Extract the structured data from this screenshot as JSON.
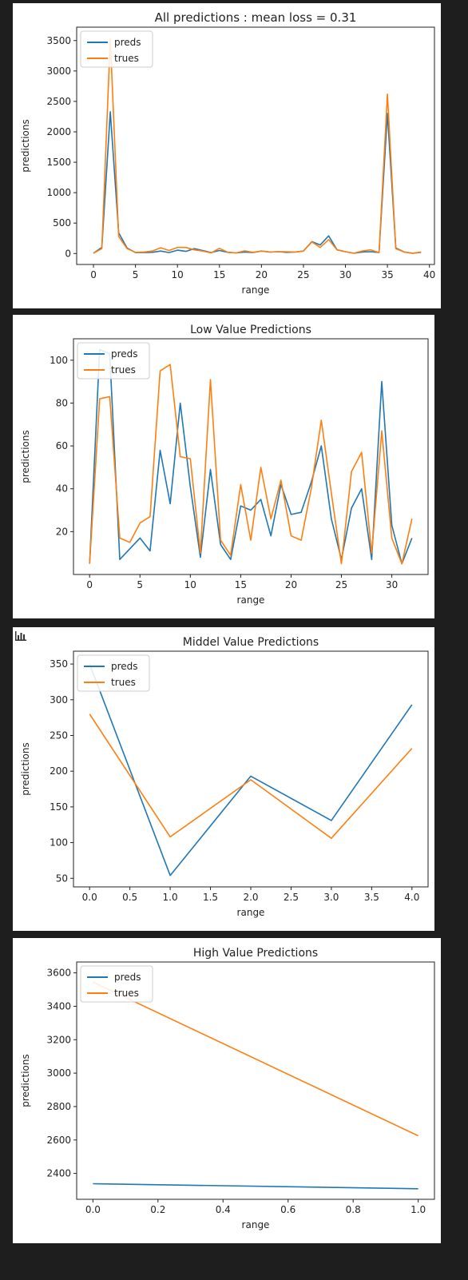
{
  "icons": {
    "chart_toggle": "bar-chart-icon"
  },
  "colors": {
    "preds": "#1f77b4",
    "trues": "#ff7f0e"
  },
  "chart_data": [
    {
      "type": "line",
      "title": "All predictions : mean loss = 0.31",
      "xlabel": "range",
      "ylabel": "predictions",
      "xlim": [
        -2,
        40.6
      ],
      "ylim": [
        -180,
        3720
      ],
      "xticks": [
        0,
        5,
        10,
        15,
        20,
        25,
        30,
        35,
        40
      ],
      "yticks": [
        0,
        500,
        1000,
        1500,
        2000,
        2500,
        3000,
        3500
      ],
      "legend": "upper-left",
      "series": [
        {
          "name": "preds",
          "color": "#1f77b4",
          "x": [
            0,
            1,
            2,
            3,
            4,
            5,
            6,
            7,
            8,
            9,
            10,
            11,
            12,
            13,
            14,
            15,
            16,
            17,
            18,
            19,
            20,
            21,
            22,
            23,
            24,
            25,
            26,
            27,
            28,
            29,
            30,
            31,
            32,
            33,
            34,
            35,
            36,
            37,
            38,
            39
          ],
          "y": [
            5,
            100,
            2330,
            340,
            90,
            15,
            15,
            20,
            40,
            15,
            55,
            35,
            80,
            50,
            15,
            50,
            20,
            10,
            25,
            15,
            40,
            25,
            30,
            20,
            25,
            40,
            195,
            140,
            290,
            60,
            30,
            5,
            25,
            30,
            15,
            2300,
            90,
            25,
            5,
            20
          ]
        },
        {
          "name": "trues",
          "color": "#ff7f0e",
          "x": [
            0,
            1,
            2,
            3,
            4,
            5,
            6,
            7,
            8,
            9,
            10,
            11,
            12,
            13,
            14,
            15,
            16,
            17,
            18,
            19,
            20,
            21,
            22,
            23,
            24,
            25,
            26,
            27,
            28,
            29,
            30,
            31,
            32,
            33,
            34,
            35,
            36,
            37,
            38,
            39
          ],
          "y": [
            5,
            80,
            3530,
            280,
            80,
            20,
            25,
            40,
            95,
            50,
            100,
            100,
            60,
            40,
            10,
            85,
            20,
            10,
            45,
            20,
            40,
            25,
            30,
            30,
            25,
            40,
            190,
            100,
            230,
            60,
            30,
            5,
            40,
            60,
            15,
            2620,
            80,
            25,
            5,
            25
          ]
        }
      ]
    },
    {
      "type": "line",
      "title": "Low Value Predictions",
      "xlabel": "range",
      "ylabel": "predictions",
      "xlim": [
        -1.6,
        33.6
      ],
      "ylim": [
        0,
        110
      ],
      "xticks": [
        0,
        5,
        10,
        15,
        20,
        25,
        30
      ],
      "yticks": [
        20,
        40,
        60,
        80,
        100
      ],
      "legend": "upper-left",
      "series": [
        {
          "name": "preds",
          "color": "#1f77b4",
          "x": [
            0,
            1,
            2,
            3,
            4,
            5,
            6,
            7,
            8,
            9,
            10,
            11,
            12,
            13,
            14,
            15,
            16,
            17,
            18,
            19,
            20,
            21,
            22,
            23,
            24,
            25,
            26,
            27,
            28,
            29,
            30,
            31,
            32
          ],
          "y": [
            5,
            105,
            103,
            7,
            12,
            17,
            11,
            58,
            33,
            80,
            41,
            8,
            49,
            14,
            7,
            32,
            30,
            35,
            18,
            42,
            28,
            29,
            43,
            60,
            26,
            7,
            31,
            40,
            7,
            90,
            23,
            5,
            17
          ]
        },
        {
          "name": "trues",
          "color": "#ff7f0e",
          "x": [
            0,
            1,
            2,
            3,
            4,
            5,
            6,
            7,
            8,
            9,
            10,
            11,
            12,
            13,
            14,
            15,
            16,
            17,
            18,
            19,
            20,
            21,
            22,
            23,
            24,
            25,
            26,
            27,
            28,
            29,
            30,
            31,
            32
          ],
          "y": [
            5,
            82,
            83,
            17,
            15,
            24,
            27,
            95,
            98,
            55,
            54,
            10,
            91,
            16,
            9,
            42,
            16,
            50,
            26,
            44,
            18,
            16,
            40,
            72,
            38,
            5,
            48,
            57,
            10,
            67,
            17,
            5,
            26
          ]
        }
      ]
    },
    {
      "type": "line",
      "title": "Middel Value Predictions",
      "xlabel": "range",
      "ylabel": "predictions",
      "xlim": [
        -0.2,
        4.2
      ],
      "ylim": [
        38,
        368
      ],
      "xticks": [
        0.0,
        0.5,
        1.0,
        1.5,
        2.0,
        2.5,
        3.0,
        3.5,
        4.0
      ],
      "yticks": [
        50,
        100,
        150,
        200,
        250,
        300,
        350
      ],
      "legend": "upper-left",
      "series": [
        {
          "name": "preds",
          "color": "#1f77b4",
          "x": [
            0,
            1,
            2,
            3,
            4
          ],
          "y": [
            350,
            54,
            193,
            131,
            293
          ]
        },
        {
          "name": "trues",
          "color": "#ff7f0e",
          "x": [
            0,
            1,
            2,
            3,
            4
          ],
          "y": [
            280,
            108,
            188,
            106,
            232
          ]
        }
      ]
    },
    {
      "type": "line",
      "title": "High Value Predictions",
      "xlabel": "range",
      "ylabel": "predictions",
      "xlim": [
        -0.05,
        1.05
      ],
      "ylim": [
        2245,
        3665
      ],
      "xticks": [
        0.0,
        0.2,
        0.4,
        0.6,
        0.8,
        1.0
      ],
      "yticks": [
        2400,
        2600,
        2800,
        3000,
        3200,
        3400,
        3600
      ],
      "legend": "upper-left",
      "series": [
        {
          "name": "preds",
          "color": "#1f77b4",
          "x": [
            0,
            1
          ],
          "y": [
            2338,
            2308
          ]
        },
        {
          "name": "trues",
          "color": "#ff7f0e",
          "x": [
            0,
            1
          ],
          "y": [
            3545,
            2625
          ]
        }
      ]
    }
  ]
}
